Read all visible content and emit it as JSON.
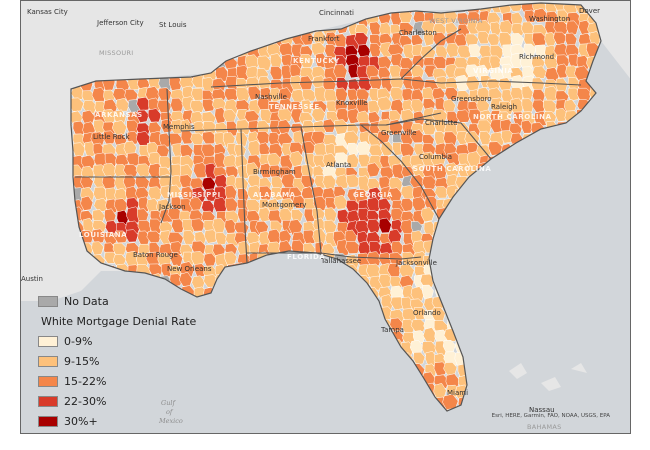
{
  "map": {
    "legend": {
      "no_data": {
        "label": "No Data",
        "color": "#a9a9a9"
      },
      "title": "White Mortgage Denial Rate",
      "classes": [
        {
          "label": "0-9%",
          "color": "#fff1d6"
        },
        {
          "label": "9-15%",
          "color": "#fdc17b"
        },
        {
          "label": "15-22%",
          "color": "#f4864a"
        },
        {
          "label": "22-30%",
          "color": "#d83b2a"
        },
        {
          "label": "30%+",
          "color": "#a80000"
        }
      ]
    },
    "colors": {
      "water": "#d2d6da",
      "land_outside": "#e6e6e6",
      "county_border": "#ffffff",
      "state_border": "#555555"
    },
    "cities": {
      "kansas_city": "Kansas City",
      "jefferson_city": "Jefferson City",
      "st_louis": "St Louis",
      "cincinnati": "Cincinnati",
      "frankfort": "Frankfort",
      "charleston_wv": "Charleston",
      "washington": "Washington",
      "dover": "Dover",
      "richmond": "Richmond",
      "nashville": "Nashville",
      "knoxville": "Knoxville",
      "greensboro": "Greensboro",
      "raleigh": "Raleigh",
      "memphis": "Memphis",
      "little_rock": "Little Rock",
      "charlotte": "Charlotte",
      "greenville": "Greenville",
      "atlanta": "Atlanta",
      "birmingham": "Birmingham",
      "columbia": "Columbia",
      "jackson": "Jackson",
      "montgomery": "Montgomery",
      "tallahassee": "Tallahassee",
      "jacksonville": "Jacksonville",
      "baton_rouge": "Baton Rouge",
      "new_orleans": "New Orleans",
      "austin": "Austin",
      "orlando": "Orlando",
      "tampa": "Tampa",
      "miami": "Miami"
    },
    "state_labels": {
      "missouri": "MISSOURI",
      "west_virginia": "WEST VIRGINIA",
      "kentucky": "KENTUCKY",
      "tennessee": "TENNESSEE",
      "arkansas": "ARKANSAS",
      "mississippi": "MISSISSIPPI",
      "alabama": "ALABAMA",
      "georgia": "GEORGIA",
      "louisiana": "LOUISIANA",
      "florida": "FLORIDA",
      "south_carolina": "SOUTH CAROLINA",
      "north_carolina": "NORTH CAROLINA",
      "virginia": "VIRGINIA"
    },
    "water_labels": {
      "gulf": "Gulf of Mexico",
      "bahamas": "BAHAMAS",
      "nassau": "Nassau"
    },
    "attribution": "Esri, HERE, Garmin, FAO, NOAA, USGS, EPA"
  }
}
